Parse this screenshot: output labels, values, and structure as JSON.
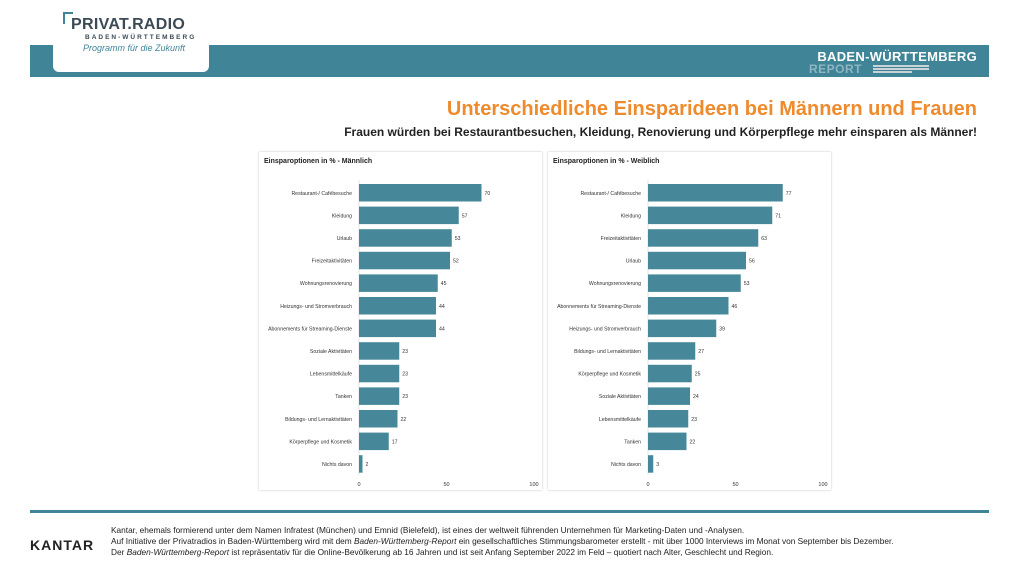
{
  "header": {
    "logo_title": "PRIVAT.RADIO",
    "logo_subtitle": "BADEN-WÜRTTEMBERG",
    "logo_tagline": "Programm für die Zukunft",
    "report_title": "BADEN-WÜRTTEMBERG",
    "report_subtitle": "REPORT",
    "accent_color": "#3f8597",
    "headline_color": "#ee8b2d"
  },
  "headline": "Unterschiedliche Einsparideen bei Männern und Frauen",
  "subheadline": "Frauen würden bei Restaurantbesuchen, Kleidung, Renovierung und Körperpflege mehr einsparen als Männer!",
  "chart_data": [
    {
      "type": "bar",
      "orientation": "horizontal",
      "title": "Einsparoptionen in % - Männlich",
      "categories": [
        "Restaurant-/ Cafébesuche",
        "Kleidung",
        "Urlaub",
        "Freizeitaktivitäten",
        "Wohnungsrenovierung",
        "Heizungs- und Stromverbrauch",
        "Abonnements für Streaming-Dienste",
        "Soziale Aktivitäten",
        "Lebensmittelkäufe",
        "Tanken",
        "Bildungs- und Lernaktivitäten",
        "Körperpflege und Kosmetik",
        "Nichts davon"
      ],
      "values": [
        70,
        57,
        53,
        52,
        45,
        44,
        44,
        23,
        23,
        23,
        22,
        17,
        2
      ],
      "xlim": [
        0,
        100
      ],
      "xticks": [
        "0",
        "50",
        "100"
      ],
      "bar_color": "#46889a",
      "data_labels": true
    },
    {
      "type": "bar",
      "orientation": "horizontal",
      "title": "Einsparoptionen in % - Weiblich",
      "categories": [
        "Restaurant-/ Cafébesuche",
        "Kleidung",
        "Freizeitaktivitäten",
        "Urlaub",
        "Wohnungsrenovierung",
        "Abonnements für Streaming-Dienste",
        "Heizungs- und Stromverbrauch",
        "Bildungs- und Lernaktivitäten",
        "Körperpflege und Kosmetik",
        "Soziale Aktivitäten",
        "Lebensmittelkäufe",
        "Tanken",
        "Nichts davon"
      ],
      "values": [
        77,
        71,
        63,
        56,
        53,
        46,
        39,
        27,
        25,
        24,
        23,
        22,
        3
      ],
      "xlim": [
        0,
        100
      ],
      "xticks": [
        "0",
        "50",
        "100"
      ],
      "bar_color": "#46889a",
      "data_labels": true
    }
  ],
  "footer": {
    "brand": "KANTAR",
    "line1": "Kantar, ehemals formierend unter dem Namen Infratest (München) und Emnid (Bielefeld), ist eines der weltweit führenden Unternehmen für Marketing-Daten und -Analysen.",
    "line2_a": "Auf Initiative der Privatradios in Baden-Württemberg wird mit dem ",
    "line2_b": "Baden-Württemberg-Report",
    "line2_c": " ein gesellschaftliches Stimmungsbarometer erstellt - mit über 1000 Interviews im Monat von September bis Dezember.",
    "line3_a": "Der ",
    "line3_b": "Baden-Württemberg-Report",
    "line3_c": " ist repräsentativ für die Online-Bevölkerung ab 16 Jahren und ist seit Anfang September 2022 im Feld – quotiert nach Alter, Geschlecht und Region."
  }
}
